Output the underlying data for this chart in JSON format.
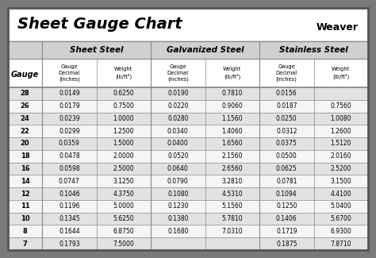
{
  "title": "Sheet Gauge Chart",
  "bg_outer": "#7a7a7a",
  "bg_inner": "#ffffff",
  "bg_header_group": "#d0d0d0",
  "bg_row_odd": "#e2e2e2",
  "bg_row_even": "#f5f5f5",
  "border_color": "#555555",
  "line_color": "#888888",
  "col_headers": [
    "Sheet Steel",
    "Galvanized Steel",
    "Stainless Steel"
  ],
  "gauges": [
    28,
    26,
    24,
    22,
    20,
    18,
    16,
    14,
    12,
    11,
    10,
    8,
    7
  ],
  "sheet_steel": [
    [
      "0.0149",
      "0.6250"
    ],
    [
      "0.0179",
      "0.7500"
    ],
    [
      "0.0239",
      "1.0000"
    ],
    [
      "0.0299",
      "1.2500"
    ],
    [
      "0.0359",
      "1.5000"
    ],
    [
      "0.0478",
      "2.0000"
    ],
    [
      "0.0598",
      "2.5000"
    ],
    [
      "0.0747",
      "3.1250"
    ],
    [
      "0.1046",
      "4.3750"
    ],
    [
      "0.1196",
      "5.0000"
    ],
    [
      "0.1345",
      "5.6250"
    ],
    [
      "0.1644",
      "6.8750"
    ],
    [
      "0.1793",
      "7.5000"
    ]
  ],
  "galvanized_steel": [
    [
      "0.0190",
      "0.7810"
    ],
    [
      "0.0220",
      "0.9060"
    ],
    [
      "0.0280",
      "1.1560"
    ],
    [
      "0.0340",
      "1.4060"
    ],
    [
      "0.0400",
      "1.6560"
    ],
    [
      "0.0520",
      "2.1560"
    ],
    [
      "0.0640",
      "2.6560"
    ],
    [
      "0.0790",
      "3.2810"
    ],
    [
      "0.1080",
      "4.5310"
    ],
    [
      "0.1230",
      "5.1560"
    ],
    [
      "0.1380",
      "5.7810"
    ],
    [
      "0.1680",
      "7.0310"
    ],
    [
      "",
      ""
    ]
  ],
  "stainless_steel": [
    [
      "0.0156",
      ""
    ],
    [
      "0.0187",
      "0.7560"
    ],
    [
      "0.0250",
      "1.0080"
    ],
    [
      "0.0312",
      "1.2600"
    ],
    [
      "0.0375",
      "1.5120"
    ],
    [
      "0.0500",
      "2.0160"
    ],
    [
      "0.0625",
      "2.5200"
    ],
    [
      "0.0781",
      "3.1500"
    ],
    [
      "0.1094",
      "4.4100"
    ],
    [
      "0.1250",
      "5.0400"
    ],
    [
      "0.1406",
      "5.6700"
    ],
    [
      "0.1719",
      "6.9300"
    ],
    [
      "0.1875",
      "7.8710"
    ]
  ],
  "figsize": [
    4.74,
    3.25
  ],
  "dpi": 100
}
